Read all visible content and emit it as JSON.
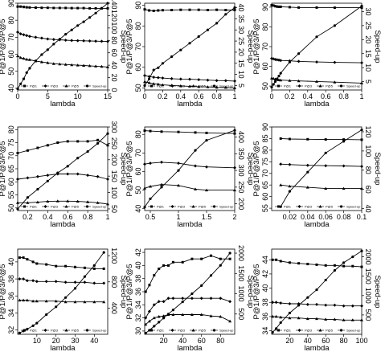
{
  "chart_data": [
    {
      "type": "line",
      "xlabel": "lambda",
      "ylabel": "P@1/P@3/P@5",
      "y2label": "Speed-up",
      "xlim": [
        0,
        15
      ],
      "xticks": [
        0,
        5,
        10,
        15
      ],
      "ylim": [
        39,
        90
      ],
      "yticks": [
        40,
        50,
        60,
        70,
        80,
        90
      ],
      "y2lim": [
        0,
        140
      ],
      "y2ticks": [
        0,
        20,
        40,
        60,
        80,
        100,
        120,
        140
      ],
      "legend": [
        "P@1",
        "P@3",
        "P@5",
        "Speed-up"
      ],
      "x": [
        0,
        0.5,
        1,
        1.5,
        2,
        3,
        4,
        5,
        6,
        7,
        8,
        9,
        10,
        11,
        12,
        13,
        14,
        15
      ],
      "series": [
        {
          "name": "P@1",
          "axis": "left",
          "values": [
            88,
            88,
            87.8,
            87.6,
            87.5,
            87.4,
            87.3,
            87.3,
            87.2,
            87.2,
            87.2,
            87.1,
            87.1,
            87.1,
            87,
            87,
            87,
            87
          ]
        },
        {
          "name": "P@3",
          "axis": "left",
          "values": [
            73,
            72,
            71.5,
            71,
            70.5,
            70,
            69.5,
            69,
            68.7,
            68.5,
            68.3,
            68.1,
            68,
            67.9,
            67.8,
            67.7,
            67.6,
            67.5
          ]
        },
        {
          "name": "P@5",
          "axis": "left",
          "values": [
            59,
            58,
            57.5,
            57,
            56.8,
            56,
            55.5,
            55,
            54.5,
            54.2,
            54,
            53.8,
            53.6,
            53.4,
            53.2,
            53,
            52.8,
            52.5
          ]
        },
        {
          "name": "Speed-up",
          "axis": "right",
          "values": [
            2,
            10,
            18,
            28,
            35,
            47,
            57,
            65,
            74,
            82,
            90,
            97,
            104,
            110,
            117,
            124,
            132,
            140
          ]
        }
      ]
    },
    {
      "type": "line",
      "xlabel": "lambda",
      "ylabel": "P@1/P@3/P@5",
      "y2label": "Speed-up",
      "xlim": [
        0,
        1
      ],
      "xticks": [
        0.0,
        0.2,
        0.4,
        0.6,
        0.8,
        1.0
      ],
      "ylim": [
        49,
        91
      ],
      "yticks": [
        50,
        60,
        70,
        80,
        90
      ],
      "y2lim": [
        3,
        42
      ],
      "y2ticks": [
        5,
        10,
        15,
        20,
        25,
        30,
        35,
        40
      ],
      "legend": [
        "P@1",
        "P@3",
        "P@5",
        "Speed-up"
      ],
      "x": [
        0,
        0.05,
        0.1,
        0.15,
        0.2,
        0.3,
        0.4,
        0.5,
        0.6,
        0.7,
        0.8,
        0.9,
        1.0
      ],
      "series": [
        {
          "name": "P@1",
          "axis": "left",
          "values": [
            88,
            87.5,
            87.3,
            87.5,
            87.6,
            87.7,
            87.8,
            87.8,
            87.8,
            87.7,
            87.8,
            87.7,
            87.7
          ]
        },
        {
          "name": "P@3",
          "axis": "left",
          "values": [
            56,
            55.5,
            55.2,
            55,
            54.8,
            54.5,
            54.3,
            54.2,
            54,
            53.8,
            53.6,
            53.5,
            53.3
          ]
        },
        {
          "name": "P@5",
          "axis": "left",
          "values": [
            53,
            52.5,
            52,
            51.8,
            51.5,
            51.2,
            51,
            50.8,
            50.6,
            50.5,
            50.3,
            50.2,
            50
          ]
        },
        {
          "name": "Speed-up",
          "axis": "right",
          "values": [
            5,
            8,
            12,
            13,
            15,
            18,
            21,
            24,
            27,
            30,
            33,
            37,
            40
          ]
        }
      ]
    },
    {
      "type": "line",
      "xlabel": "lambda",
      "ylabel": "P@1/P@3/P@5",
      "y2label": "Speed-up",
      "xlim": [
        0,
        1
      ],
      "xticks": [
        0.0,
        0.2,
        0.4,
        0.6,
        0.8,
        1.0
      ],
      "ylim": [
        48,
        92
      ],
      "yticks": [
        50,
        60,
        70,
        80,
        90
      ],
      "y2lim": [
        2,
        33
      ],
      "y2ticks": [
        5,
        10,
        15,
        20,
        25,
        30
      ],
      "legend": [
        "P@1",
        "P@3",
        "P@5",
        "Speed-up"
      ],
      "x": [
        0,
        0.02,
        0.04,
        0.06,
        0.08,
        0.1,
        0.2,
        0.3,
        0.5,
        0.7,
        1.0
      ],
      "series": [
        {
          "name": "P@1",
          "axis": "left",
          "values": [
            91,
            90.8,
            90.5,
            90.3,
            90.2,
            90.2,
            90,
            89.8,
            89.8,
            89.7,
            89.7
          ]
        },
        {
          "name": "P@3",
          "axis": "left",
          "values": [
            64,
            63.8,
            63.5,
            63.3,
            63.2,
            63,
            62.8,
            62.5,
            62.2,
            62,
            61.8
          ]
        },
        {
          "name": "P@5",
          "axis": "left",
          "values": [
            54,
            53.8,
            53.5,
            53.3,
            53.1,
            53,
            52.8,
            52.6,
            52.3,
            52,
            51.5
          ]
        },
        {
          "name": "Speed-up",
          "axis": "right",
          "values": [
            3,
            4,
            5,
            6,
            7,
            8,
            12,
            15,
            21,
            25,
            32
          ]
        }
      ]
    },
    {
      "type": "line",
      "xlabel": "lambda",
      "ylabel": "P@1/P@3/P@5",
      "y2label": "Speed-up",
      "xlim": [
        0.1,
        1.0
      ],
      "xticks": [
        0.2,
        0.4,
        0.6,
        0.8,
        1.0
      ],
      "ylim": [
        49,
        81
      ],
      "yticks": [
        50,
        55,
        60,
        65,
        70,
        75,
        80
      ],
      "y2lim": [
        45,
        300
      ],
      "y2ticks": [
        50,
        100,
        150,
        200,
        250,
        300
      ],
      "legend": [
        "P@1",
        "P@3",
        "P@5",
        "Speed-up"
      ],
      "x": [
        0.1,
        0.2,
        0.3,
        0.4,
        0.5,
        0.6,
        0.7,
        0.8,
        0.9,
        1.0
      ],
      "series": [
        {
          "name": "P@1",
          "axis": "left",
          "values": [
            71,
            72,
            73,
            74,
            75,
            75.5,
            75.5,
            75.5,
            76,
            74
          ]
        },
        {
          "name": "P@3",
          "axis": "left",
          "values": [
            61,
            61.5,
            62,
            62.5,
            63,
            63,
            63,
            62.5,
            62,
            61
          ]
        },
        {
          "name": "P@5",
          "axis": "left",
          "values": [
            52,
            52,
            52.2,
            52.5,
            52.6,
            52.6,
            52.5,
            52.3,
            52,
            51.5
          ]
        },
        {
          "name": "Speed-up",
          "axis": "right",
          "values": [
            50,
            85,
            110,
            135,
            160,
            180,
            205,
            225,
            250,
            280
          ]
        }
      ]
    },
    {
      "type": "line",
      "xlabel": "lambda",
      "ylabel": "P@1/P@3/P@5",
      "y2label": "Speed-up",
      "xlim": [
        0.4,
        2.0
      ],
      "xticks": [
        0.5,
        1.0,
        1.5,
        2.0
      ],
      "ylim": [
        39,
        84
      ],
      "yticks": [
        40,
        50,
        60,
        70,
        80
      ],
      "y2lim": [
        180,
        430
      ],
      "y2ticks": [
        200,
        250,
        300,
        350,
        400
      ],
      "legend": [
        "P@1",
        "P@3",
        "P@5",
        "Speed-up"
      ],
      "x": [
        0.4,
        0.5,
        0.7,
        1.0,
        1.3,
        1.5,
        2.0
      ],
      "series": [
        {
          "name": "P@1",
          "axis": "left",
          "values": [
            82,
            81.8,
            81.5,
            81.3,
            81,
            80.8,
            80.5
          ]
        },
        {
          "name": "P@3",
          "axis": "left",
          "values": [
            64,
            64.5,
            65,
            64.5,
            63,
            62.5,
            62
          ]
        },
        {
          "name": "P@5",
          "axis": "left",
          "values": [
            51,
            52,
            53,
            52.5,
            50.5,
            50,
            50
          ]
        },
        {
          "name": "Speed-up",
          "axis": "right",
          "values": [
            190,
            215,
            250,
            300,
            360,
            390,
            420
          ]
        }
      ]
    },
    {
      "type": "line",
      "xlabel": "lambda",
      "ylabel": "P@1/P@3/P@5",
      "y2label": "Speed-up",
      "xlim": [
        0.0,
        0.1
      ],
      "xticks": [
        0.02,
        0.04,
        0.06,
        0.08,
        0.1
      ],
      "ylim": [
        54,
        90
      ],
      "yticks": [
        55,
        60,
        65,
        70,
        75,
        80,
        85,
        90
      ],
      "y2lim": [
        38,
        125
      ],
      "y2ticks": [
        40,
        60,
        80,
        100,
        120
      ],
      "legend": [
        "P@1",
        "P@3",
        "P@5",
        "Speed-up"
      ],
      "x": [
        0.01,
        0.02,
        0.04,
        0.06,
        0.08,
        0.1
      ],
      "series": [
        {
          "name": "P@1",
          "axis": "left",
          "values": [
            85,
            84.8,
            84.7,
            84.6,
            84.6,
            84.5
          ]
        },
        {
          "name": "P@3",
          "axis": "left",
          "values": [
            74,
            73.8,
            73.5,
            73.3,
            73.2,
            73
          ]
        },
        {
          "name": "P@5",
          "axis": "left",
          "values": [
            65,
            64.5,
            64,
            63.5,
            63.5,
            63.5
          ]
        },
        {
          "name": "Speed-up",
          "axis": "right",
          "values": [
            42,
            58,
            78,
            98,
            110,
            122
          ]
        }
      ]
    },
    {
      "type": "line",
      "xlabel": "lambda",
      "ylabel": "P@1/P@3/P@5",
      "y2label": "Speed-up",
      "xlim": [
        0,
        47
      ],
      "xticks": [
        10,
        20,
        30,
        40
      ],
      "ylim": [
        31.5,
        41.5
      ],
      "yticks": [
        32,
        34,
        36,
        38,
        40
      ],
      "y2lim": [
        0,
        1300
      ],
      "y2ticks": [
        400,
        800,
        1200
      ],
      "legend": [
        "P@1",
        "P@3",
        "P@5",
        "Speed-up"
      ],
      "x": [
        1,
        3,
        5,
        8,
        10,
        15,
        20,
        25,
        30,
        35,
        40,
        45
      ],
      "series": [
        {
          "name": "P@1",
          "axis": "left",
          "values": [
            40.5,
            40.5,
            40.3,
            40,
            39.8,
            39.7,
            39.5,
            39.5,
            39.4,
            39.3,
            39.2,
            39.2
          ]
        },
        {
          "name": "P@3",
          "axis": "left",
          "values": [
            38,
            38,
            37.8,
            37.8,
            37.7,
            37.7,
            37.7,
            37.6,
            37.6,
            37.6,
            37.5,
            37.5
          ]
        },
        {
          "name": "P@5",
          "axis": "left",
          "values": [
            35.5,
            35.5,
            35.5,
            35.4,
            35.4,
            35.4,
            35.4,
            35.3,
            35.3,
            35.3,
            35.3,
            35.3
          ]
        },
        {
          "name": "Speed-up",
          "axis": "right",
          "values": [
            20,
            50,
            80,
            130,
            170,
            300,
            420,
            560,
            700,
            880,
            1050,
            1250
          ]
        }
      ]
    },
    {
      "type": "line",
      "xlabel": "lambda",
      "ylabel": "P@1/P@3/P@5",
      "y2label": "Speed-up",
      "xlim": [
        0,
        95
      ],
      "xticks": [
        20,
        40,
        60,
        80
      ],
      "ylim": [
        29.5,
        42.5
      ],
      "yticks": [
        30,
        32,
        34,
        36,
        38,
        40,
        42
      ],
      "y2lim": [
        0,
        2100
      ],
      "y2ticks": [
        500,
        1000,
        1500,
        2000
      ],
      "legend": [
        "P@1",
        "P@3",
        "P@5",
        "Speed-up"
      ],
      "x": [
        1,
        5,
        10,
        15,
        20,
        25,
        30,
        40,
        50,
        60,
        70,
        80,
        90
      ],
      "series": [
        {
          "name": "P@1",
          "axis": "left",
          "values": [
            36,
            37,
            38.5,
            39.5,
            40,
            40,
            40.5,
            40.5,
            41,
            41,
            41.5,
            41,
            41
          ]
        },
        {
          "name": "P@3",
          "axis": "left",
          "values": [
            32,
            33,
            34,
            34.5,
            34.5,
            35,
            35,
            35,
            35,
            35,
            35,
            35,
            34.5
          ]
        },
        {
          "name": "P@5",
          "axis": "left",
          "values": [
            31,
            31.5,
            32,
            32.2,
            32.3,
            32.5,
            32.5,
            32.5,
            32.5,
            32.5,
            32.3,
            32.2,
            31.5
          ]
        },
        {
          "name": "Speed-up",
          "axis": "right",
          "values": [
            30,
            100,
            200,
            300,
            400,
            500,
            600,
            800,
            1000,
            1200,
            1450,
            1700,
            2000
          ]
        }
      ]
    },
    {
      "type": "line",
      "xlabel": "lambda",
      "ylabel": "P@1/P@3/P@5",
      "y2label": "Speed-up",
      "xlim": [
        0,
        100
      ],
      "xticks": [
        20,
        40,
        60,
        80,
        100
      ],
      "ylim": [
        33.5,
        45.5
      ],
      "yticks": [
        34,
        36,
        38,
        40,
        42,
        44
      ],
      "y2lim": [
        0,
        2200
      ],
      "y2ticks": [
        500,
        1000,
        1500,
        2000
      ],
      "legend": [
        "P@1",
        "P@3",
        "P@5",
        "Speed-up"
      ],
      "x": [
        1,
        5,
        10,
        20,
        30,
        40,
        50,
        60,
        70,
        80,
        90,
        100
      ],
      "series": [
        {
          "name": "P@1",
          "axis": "left",
          "values": [
            44,
            44,
            43.8,
            43.6,
            43.5,
            43.4,
            43.3,
            43.2,
            43.2,
            43.1,
            43.1,
            43
          ]
        },
        {
          "name": "P@3",
          "axis": "left",
          "values": [
            38,
            38,
            37.9,
            37.8,
            37.8,
            37.7,
            37.7,
            37.6,
            37.6,
            37.5,
            37.5,
            37.5
          ]
        },
        {
          "name": "P@5",
          "axis": "left",
          "values": [
            36,
            36,
            35.9,
            35.8,
            35.8,
            35.7,
            35.7,
            35.6,
            35.6,
            35.5,
            35.5,
            35.5
          ]
        },
        {
          "name": "Speed-up",
          "axis": "right",
          "values": [
            50,
            150,
            300,
            550,
            750,
            950,
            1150,
            1400,
            1650,
            1850,
            2000,
            2150
          ]
        }
      ]
    }
  ]
}
